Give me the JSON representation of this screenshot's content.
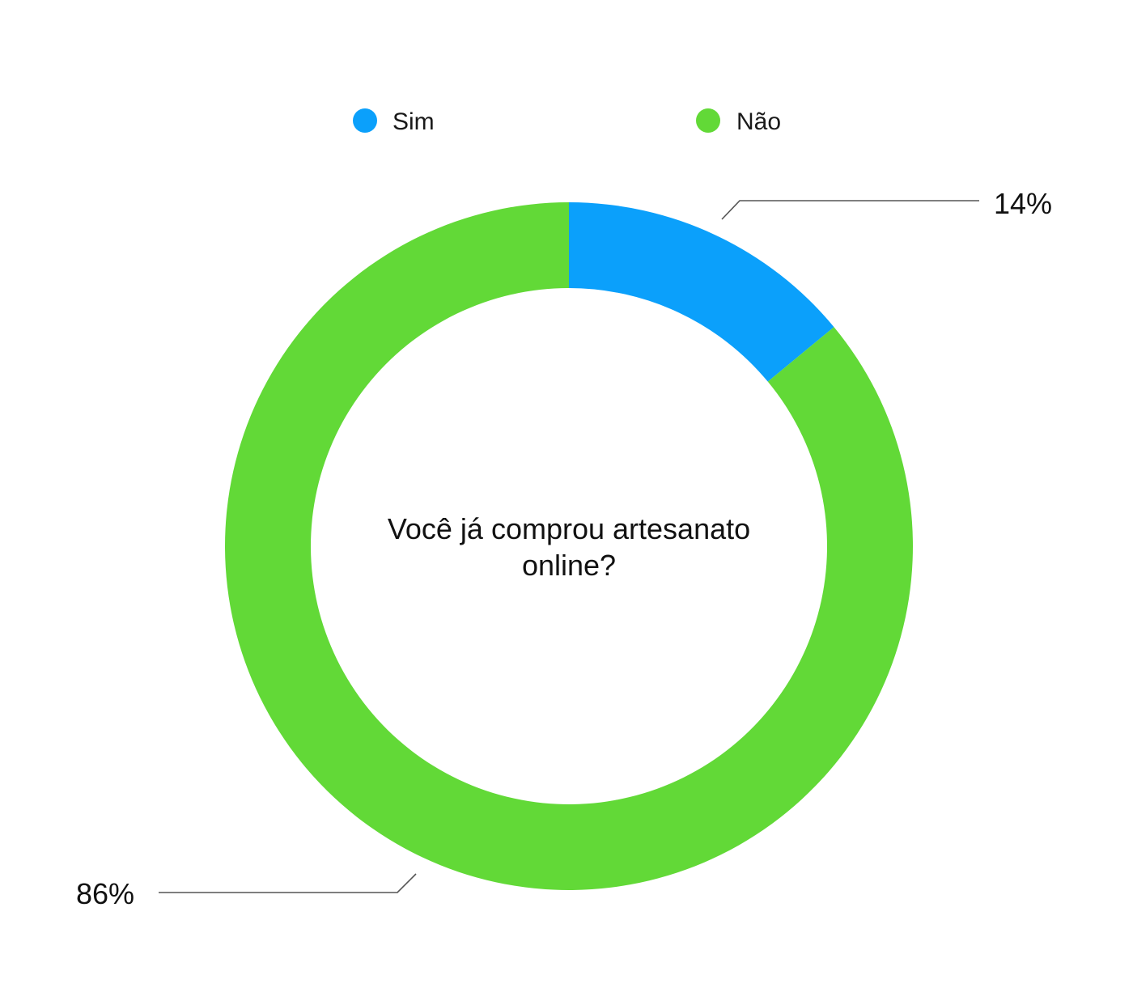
{
  "chart_data": {
    "type": "pie",
    "variant": "donut",
    "title": "Você já comprou artesanato online?",
    "title_lines": [
      "Você já comprou artesanato",
      "online?"
    ],
    "categories": [
      "Sim",
      "Não"
    ],
    "values": [
      14,
      86
    ],
    "unit": "%",
    "data_labels": [
      "14%",
      "86%"
    ],
    "colors": [
      "#0ba0fb",
      "#62d937"
    ],
    "legend": {
      "position": "top",
      "entries": [
        "Sim",
        "Não"
      ]
    },
    "start_angle": "12 o'clock",
    "direction": "clockwise"
  }
}
